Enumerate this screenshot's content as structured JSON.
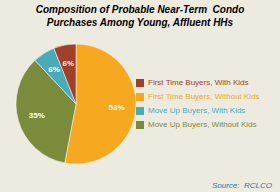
{
  "chart_data": {
    "type": "pie",
    "title": "Composition of Probable Near-Term  Condo\nPurchases Among Young, Affluent HHs",
    "categories": [
      "First Time Buyers, Without Kids",
      "Move Up Buyers, Without Kids",
      "Move Up Buyers, With Kids",
      "First Time Buyers, With Kids"
    ],
    "values": [
      53,
      35,
      6,
      6
    ],
    "value_labels": [
      "53%",
      "35%",
      "6%",
      "6%"
    ],
    "colors": [
      "#F5A820",
      "#7A8C3B",
      "#4AABB8",
      "#A0402A"
    ],
    "data_labels": true,
    "legend": "right",
    "annotations": [
      "Source:  RCLCO"
    ]
  }
}
